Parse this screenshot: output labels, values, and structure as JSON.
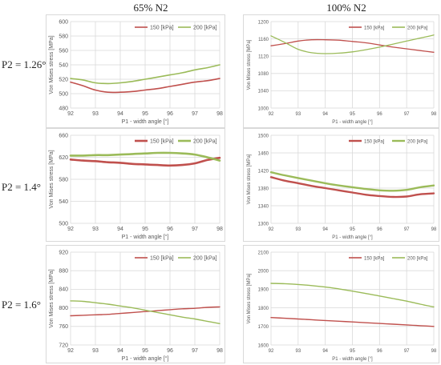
{
  "headers": {
    "columns": [
      "65% N2",
      "100% N2"
    ],
    "rows": [
      "P2 = 1.26°",
      "P2 = 1.4°",
      "P2 = 1.6°"
    ]
  },
  "colors": {
    "s150": "#c0504d",
    "s200": "#9bbb59",
    "grid": "#d9d9d9"
  },
  "chart_data": [
    {
      "type": "line",
      "row": 0,
      "col": 0,
      "xlabel": "P1 - width angle [°]",
      "ylabel": "Von Mises stress [MPa]",
      "xlim": [
        92,
        98
      ],
      "xticks": [
        92,
        93,
        94,
        95,
        96,
        97,
        98
      ],
      "ylim": [
        480,
        600
      ],
      "yticks": [
        480,
        500,
        520,
        540,
        560,
        580,
        600
      ],
      "legend": "top-right",
      "series": [
        {
          "name": "150 [kPa]",
          "x": [
            92,
            92.5,
            93,
            93.5,
            94,
            94.5,
            95,
            95.5,
            96,
            96.5,
            97,
            97.5,
            98
          ],
          "y": [
            516,
            511,
            505,
            502,
            502,
            503,
            505,
            507,
            510,
            513,
            516,
            518,
            521
          ]
        },
        {
          "name": "200 [kPa]",
          "x": [
            92,
            92.5,
            93,
            93.5,
            94,
            94.5,
            95,
            95.5,
            96,
            96.5,
            97,
            97.5,
            98
          ],
          "y": [
            521,
            519,
            515,
            514,
            515,
            517,
            520,
            523,
            526,
            529,
            533,
            536,
            540
          ]
        }
      ]
    },
    {
      "type": "line",
      "row": 0,
      "col": 1,
      "xlabel": "P1 - width angle [°]",
      "ylabel": "Von Mises stress [MPa]",
      "xlim": [
        92,
        98
      ],
      "xticks": [
        92,
        93,
        94,
        95,
        96,
        97,
        98
      ],
      "ylim": [
        1000,
        1200
      ],
      "yticks": [
        1000,
        1040,
        1080,
        1120,
        1160,
        1200
      ],
      "legend": "top-right",
      "series": [
        {
          "name": "150 [kPa]",
          "x": [
            92,
            92.5,
            93,
            93.5,
            94,
            94.5,
            95,
            95.5,
            96,
            96.5,
            97,
            97.5,
            98
          ],
          "y": [
            1144,
            1149,
            1155,
            1158,
            1158,
            1157,
            1154,
            1151,
            1146,
            1141,
            1137,
            1133,
            1129
          ]
        },
        {
          "name": "200 [kPa]",
          "x": [
            92,
            92.5,
            93,
            93.5,
            94,
            94.5,
            95,
            95.5,
            96,
            96.5,
            97,
            97.5,
            98
          ],
          "y": [
            1167,
            1152,
            1136,
            1128,
            1126,
            1127,
            1130,
            1135,
            1141,
            1148,
            1155,
            1162,
            1169
          ]
        }
      ]
    },
    {
      "type": "line",
      "row": 1,
      "col": 0,
      "xlabel": "P1 - width angle [°]",
      "ylabel": "Von Mises stress [MPa]",
      "xlim": [
        92,
        98
      ],
      "xticks": [
        92,
        93,
        94,
        95,
        96,
        97,
        98
      ],
      "ylim": [
        500,
        660
      ],
      "yticks": [
        500,
        540,
        580,
        620,
        660
      ],
      "legend": "top-right",
      "series": [
        {
          "name": "150 [kPa]",
          "x": [
            92,
            92.5,
            93,
            93.5,
            94,
            94.5,
            95,
            95.5,
            96,
            96.5,
            97,
            97.5,
            98
          ],
          "y": [
            616,
            614,
            613,
            611,
            610,
            608,
            607,
            606,
            605,
            606,
            609,
            615,
            619
          ]
        },
        {
          "name": "200 [kPa]",
          "x": [
            92,
            92.5,
            93,
            93.5,
            94,
            94.5,
            95,
            95.5,
            96,
            96.5,
            97,
            97.5,
            98
          ],
          "y": [
            623,
            623,
            624,
            624,
            625,
            626,
            627,
            628,
            628,
            627,
            625,
            620,
            614
          ]
        }
      ]
    },
    {
      "type": "line",
      "row": 1,
      "col": 1,
      "xlabel": "P1 - width angle [°]",
      "ylabel": "Von Mises stress [MPa]",
      "xlim": [
        92,
        98
      ],
      "xticks": [
        92,
        93,
        94,
        95,
        96,
        97,
        98
      ],
      "ylim": [
        1300,
        1500
      ],
      "yticks": [
        1300,
        1340,
        1380,
        1420,
        1460,
        1500
      ],
      "legend": "top-right",
      "series": [
        {
          "name": "150 [kPa]",
          "x": [
            92,
            92.5,
            93,
            93.5,
            94,
            94.5,
            95,
            95.5,
            96,
            96.5,
            97,
            97.5,
            98
          ],
          "y": [
            1405,
            1397,
            1391,
            1385,
            1380,
            1375,
            1370,
            1365,
            1362,
            1360,
            1361,
            1366,
            1368
          ]
        },
        {
          "name": "200 [kPa]",
          "x": [
            92,
            92.5,
            93,
            93.5,
            94,
            94.5,
            95,
            95.5,
            96,
            96.5,
            97,
            97.5,
            98
          ],
          "y": [
            1416,
            1409,
            1403,
            1397,
            1391,
            1386,
            1382,
            1378,
            1375,
            1374,
            1376,
            1382,
            1386
          ]
        }
      ]
    },
    {
      "type": "line",
      "row": 2,
      "col": 0,
      "xlabel": "P1 - width angle [°]",
      "ylabel": "Von Mises stress [MPa]",
      "xlim": [
        92,
        98
      ],
      "xticks": [
        92,
        93,
        94,
        95,
        96,
        97,
        98
      ],
      "ylim": [
        720,
        920
      ],
      "yticks": [
        720,
        760,
        800,
        840,
        880,
        920
      ],
      "legend": "top-right",
      "series": [
        {
          "name": "150 [kPa]",
          "x": [
            92,
            92.5,
            93,
            93.5,
            94,
            94.5,
            95,
            95.5,
            96,
            96.5,
            97,
            97.5,
            98
          ],
          "y": [
            783,
            784,
            785,
            786,
            788,
            790,
            792,
            794,
            796,
            798,
            799,
            801,
            802
          ]
        },
        {
          "name": "200 [kPa]",
          "x": [
            92,
            92.5,
            93,
            93.5,
            94,
            94.5,
            95,
            95.5,
            96,
            96.5,
            97,
            97.5,
            98
          ],
          "y": [
            815,
            814,
            811,
            808,
            804,
            800,
            795,
            790,
            785,
            780,
            776,
            771,
            766
          ]
        }
      ]
    },
    {
      "type": "line",
      "row": 2,
      "col": 1,
      "xlabel": "P1 - width angle [°]",
      "ylabel": "Von Mises stress [MPa]",
      "xlim": [
        92,
        98
      ],
      "xticks": [
        92,
        93,
        94,
        95,
        96,
        97,
        98
      ],
      "ylim": [
        1600,
        2100
      ],
      "yticks": [
        1600,
        1700,
        1800,
        1900,
        2000,
        2100
      ],
      "legend": "top-right",
      "series": [
        {
          "name": "150 [kPa]",
          "x": [
            92,
            92.5,
            93,
            93.5,
            94,
            94.5,
            95,
            95.5,
            96,
            96.5,
            97,
            97.5,
            98
          ],
          "y": [
            1748,
            1744,
            1740,
            1736,
            1732,
            1728,
            1724,
            1720,
            1716,
            1712,
            1708,
            1704,
            1700
          ]
        },
        {
          "name": "200 [kPa]",
          "x": [
            92,
            92.5,
            93,
            93.5,
            94,
            94.5,
            95,
            95.5,
            96,
            96.5,
            97,
            97.5,
            98
          ],
          "y": [
            1932,
            1930,
            1926,
            1920,
            1912,
            1902,
            1890,
            1877,
            1864,
            1850,
            1836,
            1820,
            1805
          ]
        }
      ]
    }
  ]
}
